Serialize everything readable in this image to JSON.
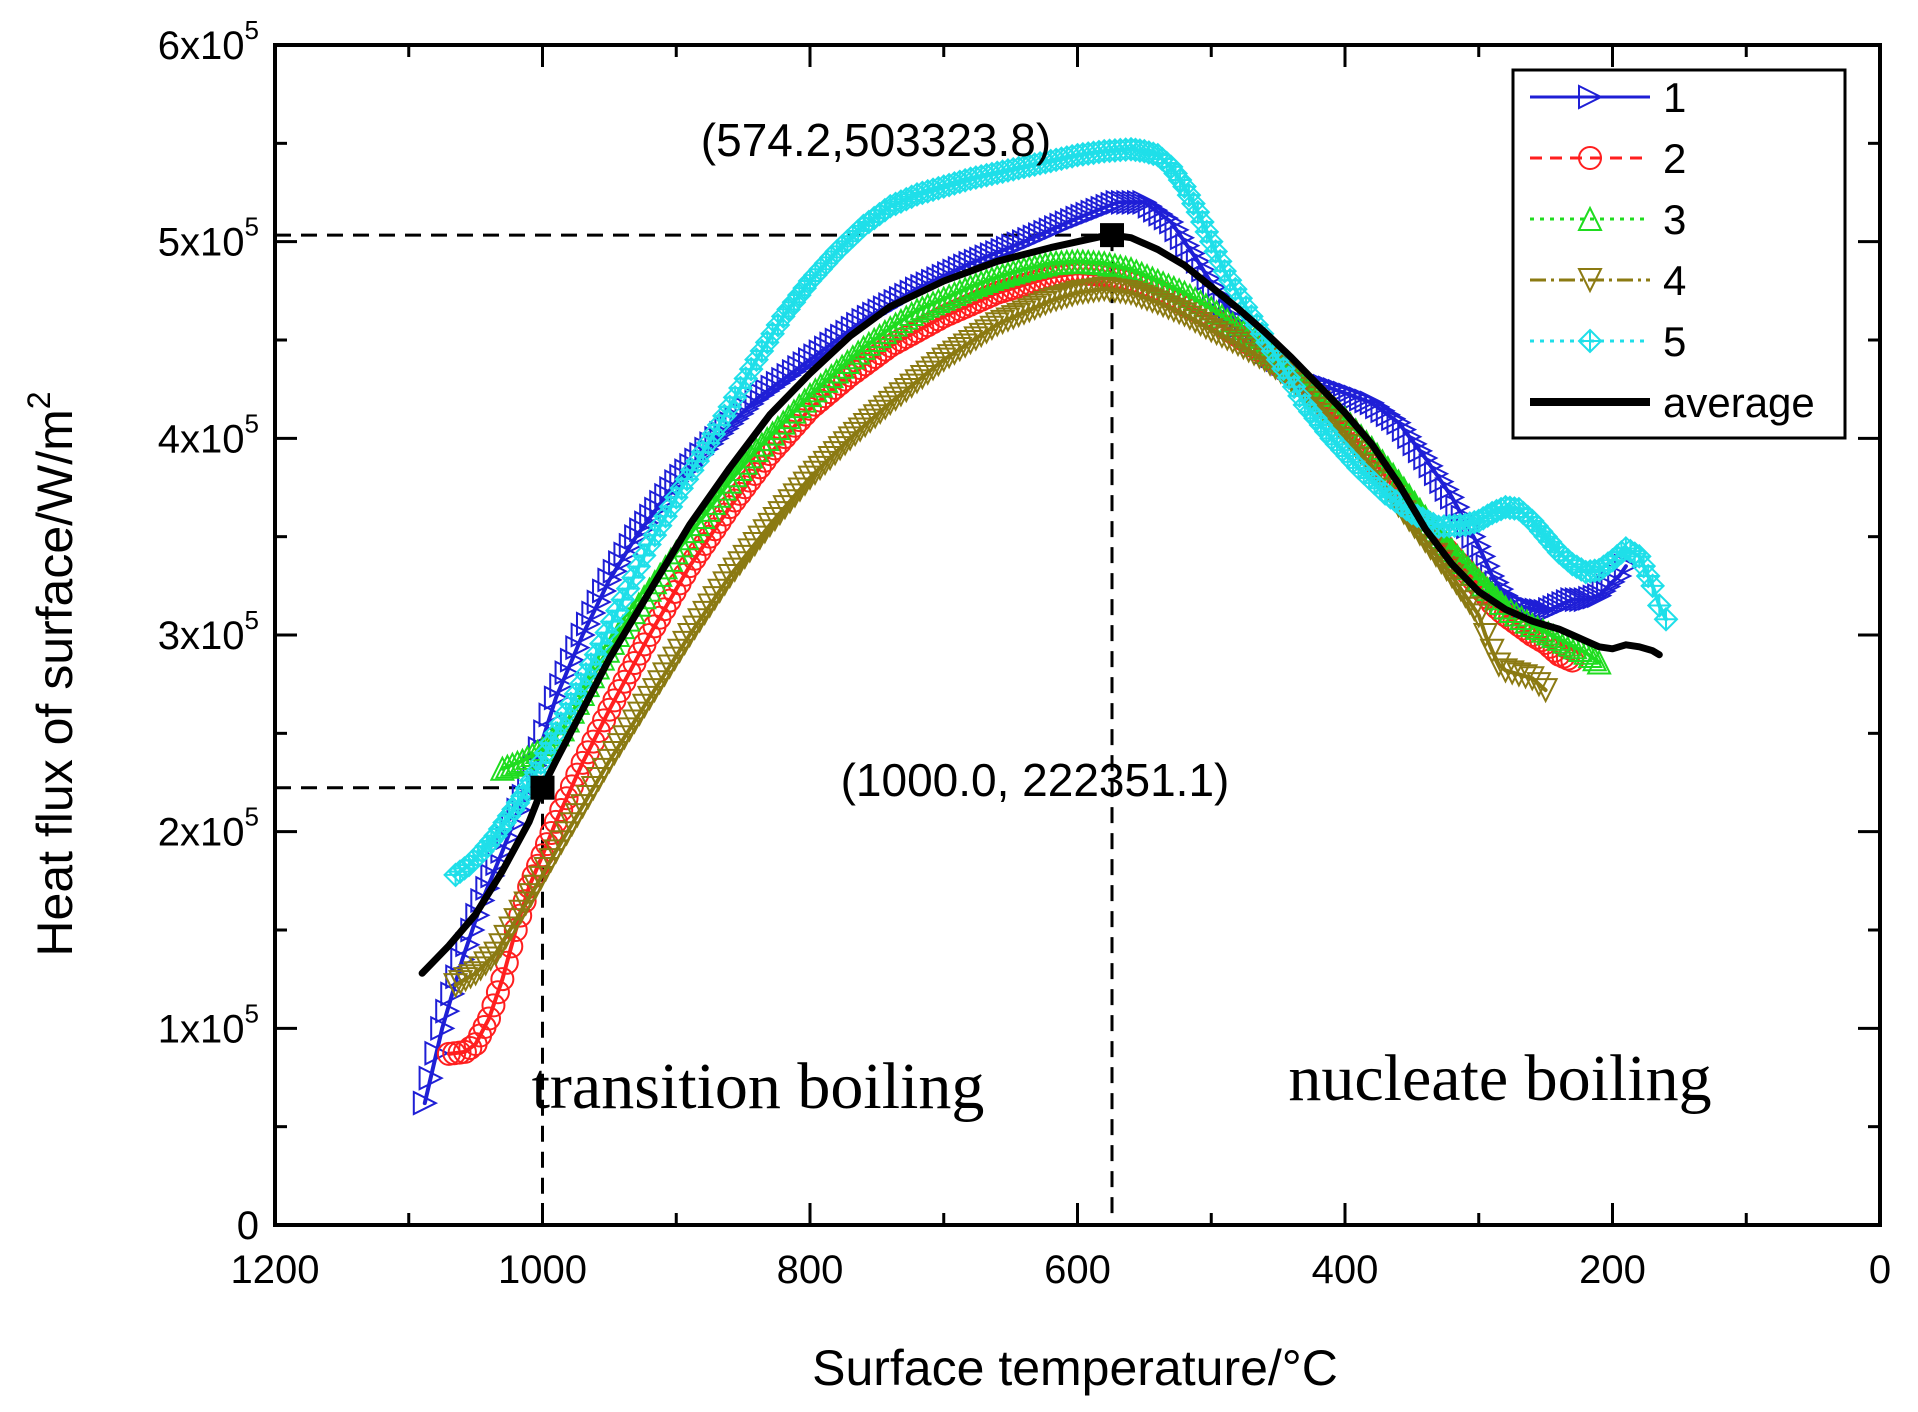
{
  "chart_data": {
    "type": "line",
    "title": "",
    "xlabel": "Surface  temperature/°C",
    "ylabel": "Heat flux of surface/W/m²",
    "xlim": [
      1200,
      0
    ],
    "ylim": [
      0,
      600000
    ],
    "x_ticks": [
      1200,
      1000,
      800,
      600,
      400,
      200,
      0
    ],
    "x_tick_labels": [
      "1200",
      "1000",
      "800",
      "600",
      "400",
      "200",
      "0"
    ],
    "y_ticks": [
      0,
      100000,
      200000,
      300000,
      400000,
      500000,
      600000
    ],
    "y_tick_labels": [
      {
        "base": "0",
        "exp": ""
      },
      {
        "base": "1x10",
        "exp": "5"
      },
      {
        "base": "2x10",
        "exp": "5"
      },
      {
        "base": "3x10",
        "exp": "5"
      },
      {
        "base": "4x10",
        "exp": "5"
      },
      {
        "base": "5x10",
        "exp": "5"
      },
      {
        "base": "6x10",
        "exp": "5"
      }
    ],
    "legend_position": "top-right",
    "series": [
      {
        "name": "1",
        "color": "#1f1fd6",
        "marker": "triangle-right",
        "dash": "",
        "x": [
          1088,
          1075,
          1060,
          1045,
          1030,
          1010,
          990,
          970,
          950,
          930,
          900,
          870,
          840,
          800,
          760,
          720,
          680,
          640,
          600,
          570,
          550,
          530,
          510,
          490,
          470,
          450,
          430,
          400,
          380,
          360,
          340,
          320,
          300,
          290,
          280,
          270,
          260,
          250,
          240,
          230,
          220,
          210,
          200,
          195,
          190
        ],
        "y": [
          62000,
          100000,
          135000,
          165000,
          190000,
          225000,
          268000,
          300000,
          328000,
          350000,
          378000,
          400000,
          420000,
          440000,
          460000,
          476000,
          489000,
          500000,
          512000,
          520000,
          520000,
          510000,
          490000,
          468000,
          450000,
          440000,
          430000,
          423000,
          418000,
          408000,
          390000,
          370000,
          345000,
          330000,
          320000,
          315000,
          313000,
          312000,
          315000,
          318000,
          318000,
          320000,
          327000,
          330000,
          335000
        ]
      },
      {
        "name": "2",
        "color": "#ff1f1f",
        "marker": "circle",
        "dash": "12,8",
        "x": [
          1070,
          1058,
          1050,
          1040,
          1030,
          1020,
          1010,
          1000,
          990,
          970,
          950,
          920,
          890,
          860,
          830,
          800,
          770,
          740,
          700,
          660,
          620,
          600,
          580,
          560,
          540,
          520,
          500,
          480,
          460,
          440,
          420,
          400,
          380,
          360,
          340,
          320,
          300,
          290,
          280,
          270,
          260,
          250,
          240,
          230
        ],
        "y": [
          87000,
          88000,
          92000,
          105000,
          125000,
          150000,
          172000,
          188000,
          205000,
          235000,
          262000,
          300000,
          335000,
          365000,
          392000,
          415000,
          432000,
          447000,
          462000,
          474000,
          482000,
          484000,
          483000,
          480000,
          475000,
          468000,
          461000,
          452000,
          443000,
          432000,
          420000,
          406000,
          390000,
          372000,
          356000,
          340000,
          325000,
          316000,
          310000,
          305000,
          300000,
          296000,
          290000,
          287000
        ]
      },
      {
        "name": "3",
        "color": "#1fdc1f",
        "marker": "triangle-up",
        "dash": "4,6",
        "x": [
          1030,
          1015,
          1000,
          985,
          970,
          955,
          940,
          920,
          900,
          880,
          860,
          840,
          820,
          800,
          780,
          760,
          740,
          720,
          700,
          680,
          660,
          640,
          620,
          600,
          580,
          560,
          540,
          520,
          500,
          480,
          460,
          440,
          420,
          400,
          380,
          360,
          340,
          320,
          300,
          290,
          280,
          260,
          240,
          220,
          210
        ],
        "y": [
          232000,
          236000,
          242000,
          252000,
          270000,
          288000,
          304000,
          323000,
          342000,
          360000,
          378000,
          394000,
          408000,
          422000,
          434000,
          446000,
          456000,
          465000,
          471000,
          477000,
          482000,
          486000,
          489000,
          490000,
          489000,
          486000,
          480000,
          474000,
          466000,
          456000,
          446000,
          435000,
          422000,
          410000,
          395000,
          378000,
          360000,
          343000,
          328000,
          321000,
          314000,
          305000,
          298000,
          291000,
          286000
        ]
      },
      {
        "name": "4",
        "color": "#8b7a12",
        "marker": "triangle-down",
        "dash": "16,5,3,5",
        "x": [
          1065,
          1050,
          1035,
          1020,
          1005,
          990,
          970,
          950,
          920,
          890,
          860,
          830,
          800,
          770,
          740,
          700,
          660,
          620,
          600,
          580,
          560,
          540,
          520,
          500,
          480,
          460,
          440,
          420,
          400,
          380,
          360,
          340,
          320,
          310,
          300,
          295,
          290,
          285,
          280,
          275,
          270,
          265,
          260,
          255,
          250
        ],
        "y": [
          122000,
          128000,
          138000,
          155000,
          172000,
          190000,
          213000,
          236000,
          268000,
          300000,
          330000,
          356000,
          380000,
          400000,
          418000,
          440000,
          458000,
          470000,
          474000,
          476000,
          474000,
          469000,
          463000,
          455000,
          448000,
          440000,
          430000,
          418000,
          403000,
          386000,
          366000,
          348000,
          330000,
          320000,
          310000,
          300000,
          292000,
          285000,
          282000,
          281000,
          280000,
          279000,
          278000,
          275000,
          272000
        ]
      },
      {
        "name": "5",
        "color": "#1fdfe9",
        "marker": "diamond",
        "dash": "4,6",
        "x": [
          1065,
          1055,
          1045,
          1035,
          1025,
          1015,
          1005,
          990,
          975,
          960,
          940,
          920,
          900,
          880,
          860,
          840,
          820,
          800,
          780,
          760,
          740,
          720,
          700,
          680,
          660,
          640,
          620,
          600,
          580,
          560,
          550,
          540,
          530,
          520,
          510,
          500,
          490,
          470,
          450,
          430,
          410,
          390,
          370,
          350,
          330,
          310,
          300,
          290,
          280,
          270,
          260,
          250,
          240,
          230,
          220,
          210,
          200,
          190,
          180,
          170,
          165,
          160
        ],
        "y": [
          178000,
          183000,
          190000,
          198000,
          208000,
          218000,
          230000,
          250000,
          270000,
          290000,
          318000,
          346000,
          370000,
          393000,
          416000,
          440000,
          462000,
          480000,
          495000,
          508000,
          518000,
          524000,
          528000,
          532000,
          535000,
          538000,
          541000,
          544000,
          546000,
          547000,
          546000,
          544000,
          538000,
          528000,
          515000,
          500000,
          485000,
          462000,
          440000,
          417000,
          400000,
          385000,
          372000,
          362000,
          355000,
          356000,
          358000,
          362000,
          365000,
          364000,
          358000,
          350000,
          342000,
          336000,
          332000,
          333000,
          338000,
          344000,
          340000,
          325000,
          315000,
          308000
        ]
      },
      {
        "name": "average",
        "color": "#000000",
        "marker": "none",
        "dash": "",
        "x": [
          1090,
          1070,
          1050,
          1030,
          1010,
          1000,
          990,
          970,
          950,
          920,
          890,
          860,
          830,
          800,
          770,
          740,
          700,
          660,
          620,
          600,
          580,
          574,
          560,
          540,
          520,
          500,
          480,
          460,
          440,
          420,
          400,
          380,
          360,
          340,
          320,
          300,
          280,
          260,
          240,
          230,
          220,
          210,
          200,
          190,
          180,
          170,
          165
        ],
        "y": [
          128000,
          142000,
          158000,
          180000,
          205000,
          222351,
          236000,
          262000,
          288000,
          322000,
          356000,
          385000,
          412000,
          433000,
          452000,
          467000,
          480000,
          490000,
          497000,
          500000,
          503000,
          503324,
          502000,
          496000,
          488000,
          477000,
          466000,
          454000,
          441000,
          427000,
          413000,
          397000,
          377000,
          354000,
          336000,
          322000,
          313000,
          307000,
          303000,
          300000,
          297000,
          294000,
          293000,
          295000,
          294000,
          292000,
          290000
        ]
      }
    ],
    "annotations": [
      {
        "text": "(574.2,503323.8)",
        "x": 574.2,
        "y": 503323.8
      },
      {
        "text": "(1000.0, 222351.1)",
        "x": 1000.0,
        "y": 222351.1
      }
    ],
    "regions": [
      "transition boiling",
      "nucleate boiling"
    ]
  }
}
